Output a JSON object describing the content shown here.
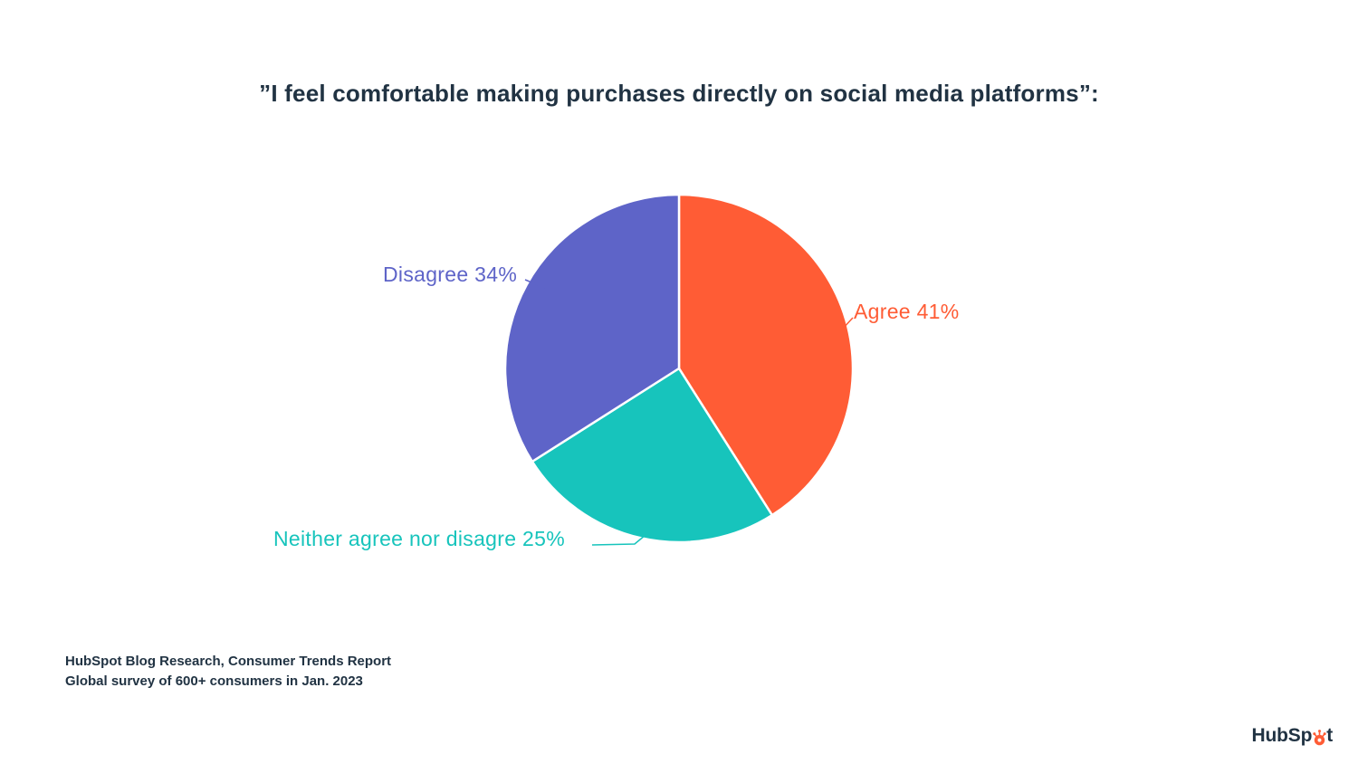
{
  "page": {
    "title": "”I feel comfortable making purchases directly on social media platforms”:"
  },
  "chart_data": {
    "type": "pie",
    "title": "”I feel comfortable making purchases directly on social media platforms”:",
    "start_angle_deg": 0,
    "direction": "clockwise",
    "total": 100,
    "slices": [
      {
        "label": "Agree",
        "value": 41,
        "display": "Agree 41%",
        "color": "#FF5C35"
      },
      {
        "label": "Neither agree nor disagre",
        "value": 25,
        "display": "Neither agree nor disagre 25%",
        "color": "#17C4BC"
      },
      {
        "label": "Disagree",
        "value": 34,
        "display": "Disagree 34%",
        "color": "#5E64C8"
      }
    ],
    "legend_position": "labels-around-pie"
  },
  "source": {
    "line1": "HubSpot Blog Research, Consumer Trends Report",
    "line2": "Global survey of 600+ consumers in Jan. 2023"
  },
  "branding": {
    "logo_full": "HubSpot",
    "logo_text_pre": "HubSp",
    "logo_text_post": "t",
    "sprocket_color": "#FF5C35",
    "text_color": "#213343"
  }
}
